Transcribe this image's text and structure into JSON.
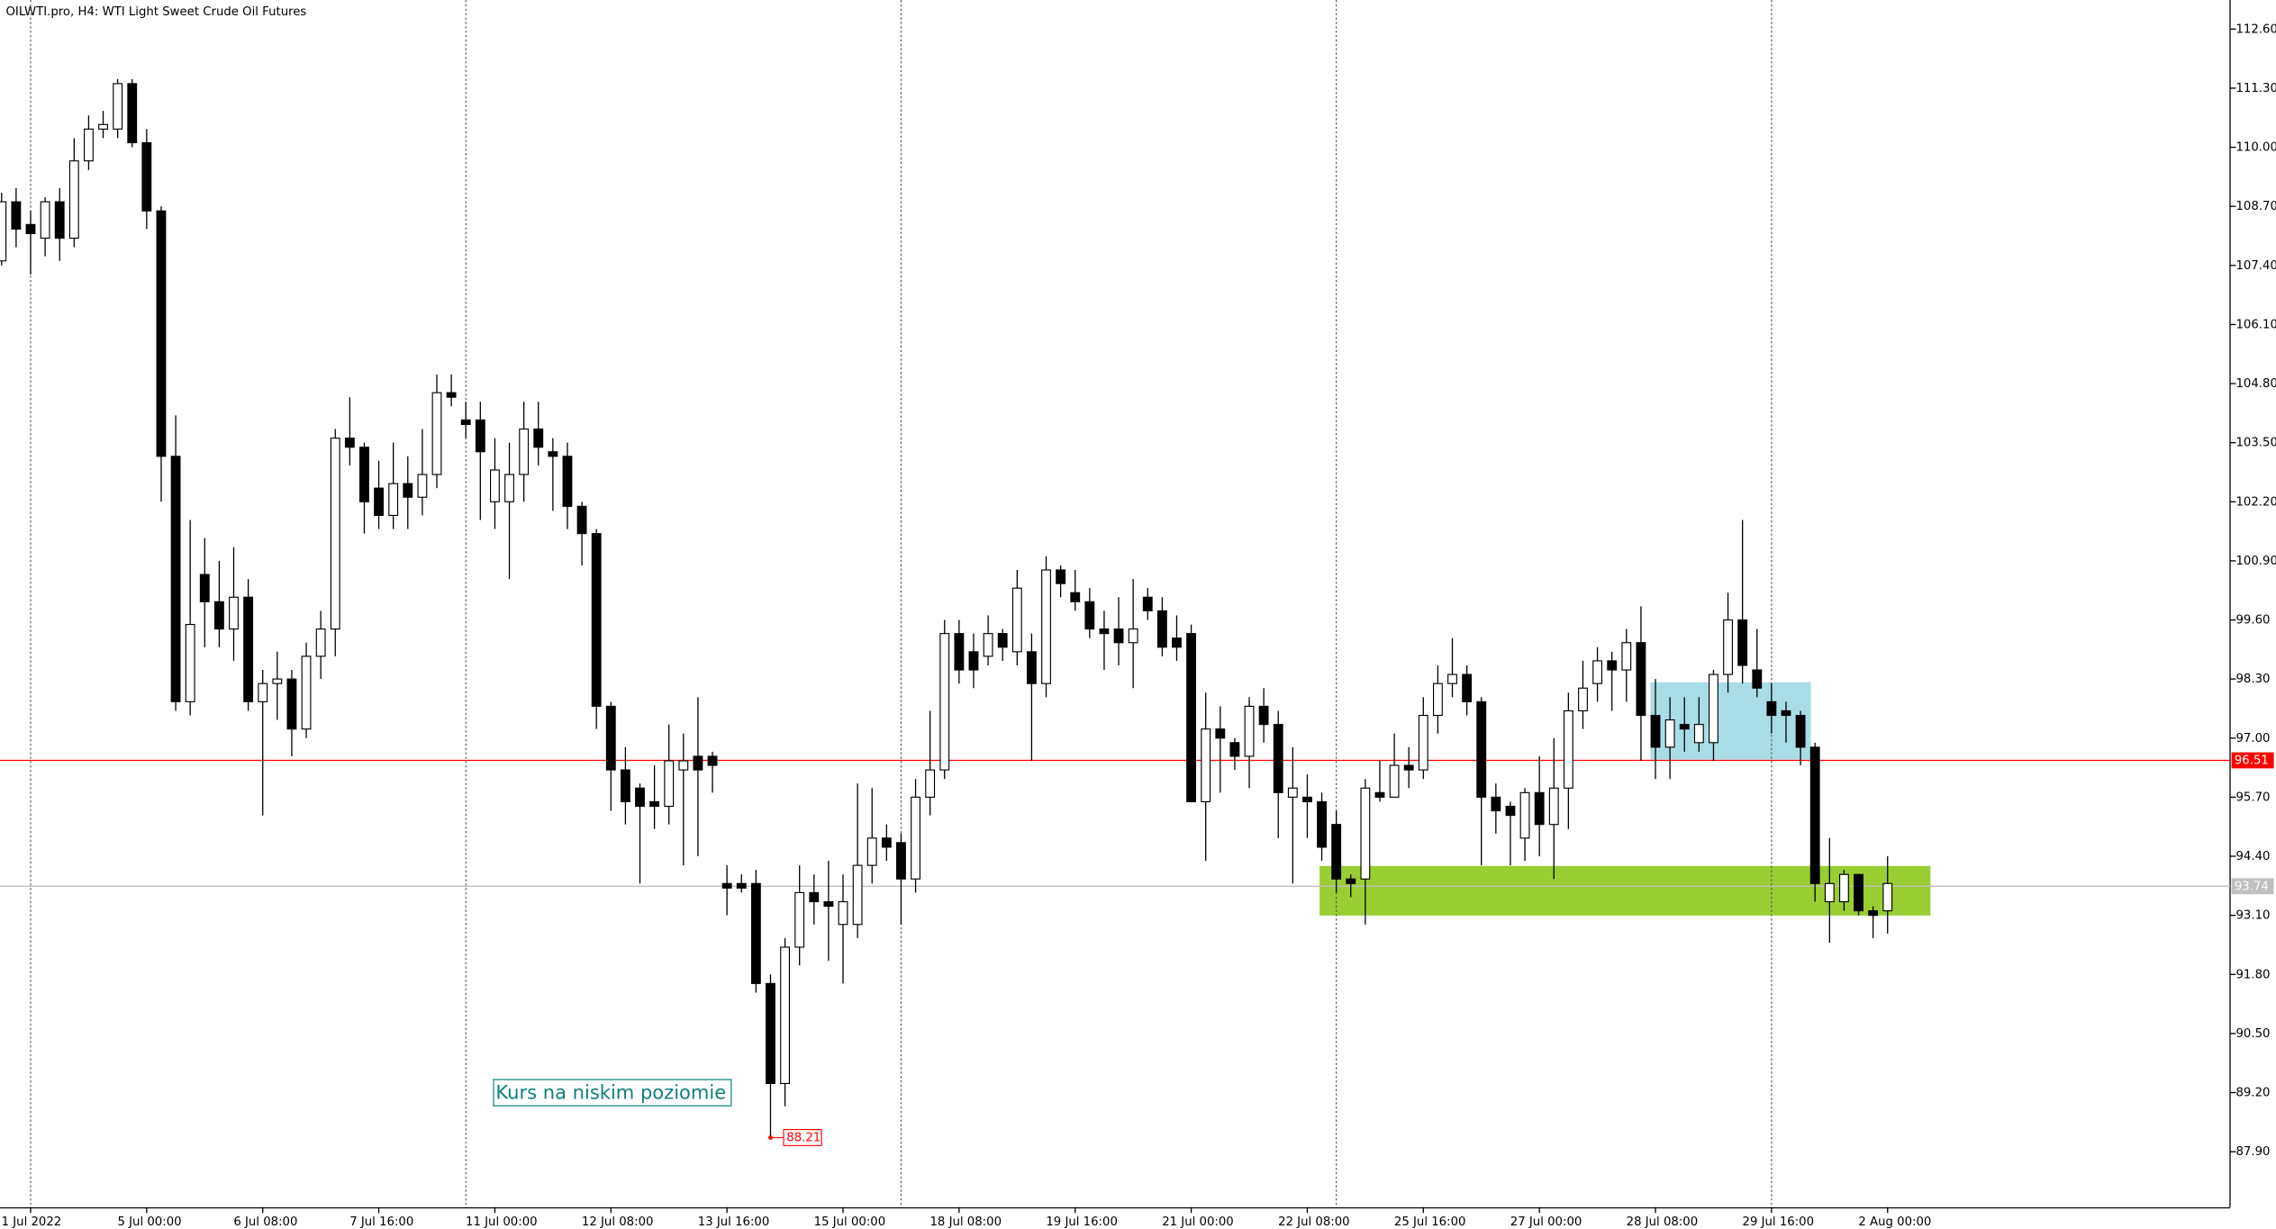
{
  "chart_data": {
    "type": "candlestick",
    "title": "OILWTI.pro, H4:  WTI Light Sweet Crude Oil Futures",
    "categories": [
      null,
      null,
      "1 Jul 2022",
      null,
      null,
      null,
      null,
      null,
      null,
      null,
      "5 Jul 00:00",
      null,
      null,
      null,
      null,
      null,
      null,
      null,
      "6 Jul 08:00",
      null,
      null,
      null,
      null,
      null,
      null,
      null,
      "7 Jul 16:00",
      null,
      null,
      null,
      null,
      null,
      null,
      null,
      "11 Jul 00:00",
      null,
      null,
      null,
      null,
      null,
      null,
      null,
      "12 Jul 08:00",
      null,
      null,
      null,
      null,
      null,
      null,
      null,
      "13 Jul 16:00",
      null,
      null,
      null,
      null,
      null,
      null,
      null,
      "15 Jul 00:00",
      null,
      null,
      null,
      null,
      null,
      null,
      null,
      "18 Jul 08:00",
      null,
      null,
      null,
      null,
      null,
      null,
      null,
      "19 Jul 16:00",
      null,
      null,
      null,
      null,
      null,
      null,
      null,
      "21 Jul 00:00",
      null,
      null,
      null,
      null,
      null,
      null,
      null,
      "22 Jul 08:00",
      null,
      null,
      null,
      null,
      null,
      null,
      null,
      "25 Jul 16:00",
      null,
      null,
      null,
      null,
      null,
      null,
      null,
      "27 Jul 00:00",
      null,
      null,
      null,
      null,
      null,
      null,
      null,
      "28 Jul 08:00",
      null,
      null,
      null,
      null,
      null,
      null,
      null,
      "29 Jul 16:00",
      null,
      null,
      null,
      null,
      null,
      null,
      null,
      "2 Aug 00:00"
    ],
    "open": [
      107.5,
      108.8,
      108.3,
      108.0,
      108.8,
      108.0,
      109.7,
      110.4,
      110.4,
      111.4,
      110.1,
      108.6,
      103.2,
      97.8,
      100.6,
      100.0,
      99.4,
      100.1,
      97.8,
      98.2,
      98.3,
      97.2,
      98.8,
      99.4,
      103.6,
      103.4,
      102.5,
      101.9,
      102.6,
      102.3,
      102.8,
      104.6,
      104.0,
      104.0,
      102.2,
      102.2,
      102.8,
      103.8,
      103.3,
      103.2,
      102.1,
      101.5,
      97.7,
      96.3,
      95.9,
      95.6,
      95.5,
      96.3,
      96.6,
      96.6,
      93.8,
      93.8,
      93.8,
      91.6,
      89.4,
      92.4,
      93.6,
      93.4,
      92.9,
      92.9,
      94.2,
      94.8,
      94.7,
      93.9,
      95.7,
      96.3,
      99.3,
      98.9,
      98.8,
      99.3,
      98.9,
      98.9,
      98.2,
      100.7,
      100.2,
      100.0,
      99.4,
      99.4,
      99.1,
      100.1,
      99.8,
      99.2,
      99.3,
      95.6,
      97.2,
      96.9,
      96.6,
      97.7,
      97.3,
      95.7,
      95.7,
      95.6,
      95.1,
      93.9,
      93.9,
      95.8,
      95.7,
      96.4,
      96.3,
      97.5,
      98.2,
      98.4,
      97.8,
      95.7,
      95.5,
      94.8,
      95.8,
      95.1,
      95.9,
      97.6,
      98.2,
      98.7,
      98.5,
      99.1,
      97.5,
      96.8,
      97.3,
      96.9,
      96.9,
      98.4,
      99.6,
      98.5,
      97.8,
      97.6,
      97.5,
      96.8,
      93.4,
      93.4,
      94.0,
      93.2,
      93.2
    ],
    "high": [
      109.0,
      109.1,
      108.6,
      108.9,
      109.1,
      110.2,
      110.7,
      110.8,
      111.5,
      111.5,
      110.4,
      108.7,
      104.1,
      101.8,
      101.4,
      100.9,
      101.2,
      100.5,
      98.5,
      98.9,
      98.5,
      99.1,
      99.8,
      103.8,
      104.5,
      103.5,
      103.1,
      103.5,
      103.2,
      103.8,
      105.0,
      105.0,
      104.4,
      104.4,
      103.6,
      103.5,
      104.4,
      104.4,
      103.6,
      103.5,
      102.2,
      101.6,
      97.8,
      96.8,
      96.0,
      96.4,
      97.3,
      97.1,
      97.9,
      96.7,
      94.2,
      94.0,
      94.1,
      91.8,
      92.6,
      94.2,
      94.0,
      94.3,
      94.0,
      96.0,
      95.9,
      95.1,
      94.9,
      96.1,
      97.6,
      99.6,
      99.6,
      99.3,
      99.7,
      99.4,
      100.7,
      99.3,
      101.0,
      100.8,
      100.7,
      100.3,
      99.8,
      100.1,
      100.5,
      100.3,
      100.1,
      99.7,
      99.5,
      98.0,
      97.7,
      97.0,
      97.9,
      98.1,
      97.6,
      96.8,
      96.2,
      95.8,
      95.4,
      94.0,
      96.1,
      96.5,
      97.1,
      96.8,
      97.9,
      98.6,
      99.2,
      98.6,
      97.9,
      96.0,
      95.6,
      95.9,
      96.6,
      97.0,
      98.0,
      98.7,
      99.0,
      98.9,
      99.4,
      99.9,
      98.3,
      97.9,
      97.9,
      97.9,
      98.5,
      100.2,
      101.8,
      99.4,
      98.2,
      97.8,
      97.6,
      96.9,
      94.8,
      94.1,
      94.0,
      93.3,
      94.4
    ],
    "low": [
      107.4,
      107.8,
      107.2,
      107.6,
      107.5,
      107.8,
      109.5,
      110.2,
      110.2,
      110.0,
      108.2,
      102.2,
      97.6,
      97.5,
      99.0,
      99.0,
      98.7,
      97.6,
      95.3,
      97.4,
      96.6,
      97.0,
      98.3,
      98.8,
      103.0,
      101.5,
      101.6,
      101.6,
      101.6,
      101.9,
      102.5,
      104.3,
      103.6,
      101.8,
      101.6,
      100.5,
      102.2,
      103.0,
      102.0,
      101.6,
      100.8,
      97.2,
      95.4,
      95.1,
      93.8,
      95.0,
      95.1,
      94.2,
      94.4,
      95.8,
      93.1,
      93.6,
      91.4,
      88.21,
      88.9,
      92.0,
      92.9,
      92.1,
      91.6,
      92.6,
      93.8,
      94.3,
      92.9,
      93.6,
      95.3,
      96.1,
      98.2,
      98.1,
      98.6,
      98.7,
      98.6,
      96.5,
      97.9,
      100.1,
      99.8,
      99.2,
      98.5,
      98.6,
      98.1,
      99.6,
      98.8,
      98.7,
      95.6,
      94.3,
      95.8,
      96.3,
      95.9,
      96.9,
      94.8,
      93.8,
      94.8,
      94.3,
      93.6,
      93.5,
      92.9,
      95.6,
      95.7,
      95.9,
      96.1,
      97.1,
      97.9,
      97.5,
      94.2,
      94.9,
      94.2,
      94.3,
      94.4,
      93.9,
      95.0,
      97.2,
      97.8,
      97.6,
      97.8,
      96.5,
      96.1,
      96.1,
      96.7,
      96.7,
      96.5,
      98.0,
      98.2,
      97.9,
      97.1,
      96.9,
      96.4,
      93.4,
      92.5,
      93.2,
      93.1,
      92.6,
      92.7
    ],
    "close": [
      108.8,
      108.2,
      108.1,
      108.8,
      108.0,
      109.7,
      110.4,
      110.5,
      111.4,
      110.1,
      108.6,
      103.2,
      97.8,
      99.5,
      100.0,
      99.4,
      100.1,
      97.8,
      98.2,
      98.3,
      97.2,
      98.8,
      99.4,
      103.6,
      103.4,
      102.2,
      101.9,
      102.6,
      102.3,
      102.8,
      104.6,
      104.5,
      103.9,
      103.3,
      102.9,
      102.8,
      103.8,
      103.4,
      103.2,
      102.1,
      101.5,
      97.7,
      96.3,
      95.6,
      95.5,
      95.5,
      96.5,
      96.5,
      96.3,
      96.4,
      93.7,
      93.7,
      91.6,
      89.4,
      92.4,
      93.6,
      93.4,
      93.3,
      93.4,
      94.2,
      94.8,
      94.6,
      93.9,
      95.7,
      96.3,
      99.3,
      98.5,
      98.5,
      99.3,
      99.0,
      100.3,
      98.2,
      100.7,
      100.4,
      100.0,
      99.4,
      99.3,
      99.1,
      99.4,
      99.8,
      99.0,
      99.0,
      95.6,
      97.2,
      97.0,
      96.6,
      97.7,
      97.3,
      95.8,
      95.9,
      95.6,
      94.6,
      93.9,
      93.8,
      95.9,
      95.7,
      96.4,
      96.3,
      97.5,
      98.2,
      98.4,
      97.8,
      95.7,
      95.4,
      95.3,
      95.8,
      95.1,
      95.9,
      97.6,
      98.1,
      98.7,
      98.5,
      99.1,
      97.5,
      96.8,
      97.4,
      97.2,
      97.3,
      98.4,
      99.6,
      98.6,
      98.1,
      97.5,
      97.5,
      96.8,
      93.8,
      93.8,
      94.0,
      93.2,
      93.1,
      93.8
    ],
    "up_color": "#ffffff",
    "down_color": "#000000",
    "ylim": [
      86.68,
      113.24
    ],
    "yticks": [
      {
        "value": 112.6,
        "label": "112.60"
      },
      {
        "value": 111.3,
        "label": "111.30"
      },
      {
        "value": 110.0,
        "label": "110.00"
      },
      {
        "value": 108.7,
        "label": "108.70"
      },
      {
        "value": 107.4,
        "label": "107.40"
      },
      {
        "value": 106.1,
        "label": "106.10"
      },
      {
        "value": 104.8,
        "label": "104.80"
      },
      {
        "value": 103.5,
        "label": "103.50"
      },
      {
        "value": 102.2,
        "label": "102.20"
      },
      {
        "value": 100.9,
        "label": "100.90"
      },
      {
        "value": 99.6,
        "label": "99.60"
      },
      {
        "value": 98.3,
        "label": "98.30"
      },
      {
        "value": 97.0,
        "label": "97.00"
      },
      {
        "value": 95.7,
        "label": "95.70"
      },
      {
        "value": 94.4,
        "label": "94.40"
      },
      {
        "value": 93.1,
        "label": "93.10"
      },
      {
        "value": 91.8,
        "label": "91.80"
      },
      {
        "value": 90.5,
        "label": "90.50"
      },
      {
        "value": 89.2,
        "label": "89.20"
      },
      {
        "value": 87.9,
        "label": "87.90"
      }
    ],
    "price_lines": [
      {
        "value": 96.51,
        "color": "#ff0000"
      },
      {
        "value": 93.74,
        "color": "#c0c0c0"
      }
    ],
    "low_label": {
      "value": 88.21,
      "color": "#ff0000"
    },
    "annotation": "Kurs na niskim poziomie",
    "grid": false
  }
}
